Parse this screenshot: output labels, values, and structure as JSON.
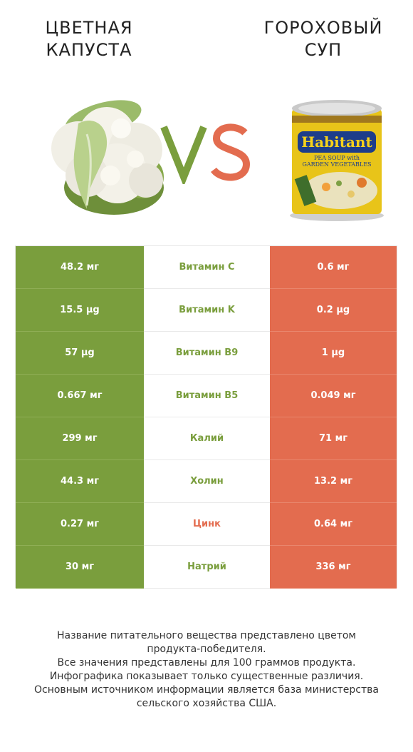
{
  "header": {
    "left_title": "ЦВЕТНАЯ КАПУСТА",
    "right_title": "ГОРОХОВЫЙ СУП",
    "vs": "VS"
  },
  "images": {
    "left": "cauliflower-image",
    "right": "pea-soup-can-image",
    "can_brand": "Habitant",
    "can_product": "PEA SOUP with GARDEN VEGETABLES"
  },
  "colors": {
    "left_winner": "#7a9e3d",
    "right_winner": "#e36c4f",
    "vs_v": "#7a9e3d",
    "vs_s": "#e36c4f"
  },
  "rows": [
    {
      "left": "48.2 мг",
      "nutrient": "Витамин C",
      "right": "0.6 мг",
      "winner": "left"
    },
    {
      "left": "15.5 µg",
      "nutrient": "Витамин K",
      "right": "0.2 µg",
      "winner": "left"
    },
    {
      "left": "57 µg",
      "nutrient": "Витамин B9",
      "right": "1 µg",
      "winner": "left"
    },
    {
      "left": "0.667 мг",
      "nutrient": "Витамин B5",
      "right": "0.049 мг",
      "winner": "left"
    },
    {
      "left": "299 мг",
      "nutrient": "Калий",
      "right": "71 мг",
      "winner": "left"
    },
    {
      "left": "44.3 мг",
      "nutrient": "Холин",
      "right": "13.2 мг",
      "winner": "left"
    },
    {
      "left": "0.27 мг",
      "nutrient": "Цинк",
      "right": "0.64 мг",
      "winner": "right"
    },
    {
      "left": "30 мг",
      "nutrient": "Натрий",
      "right": "336 мг",
      "winner": "left"
    }
  ],
  "footnote": [
    "Название питательного вещества представлено цветом",
    "продукта-победителя.",
    "Все значения представлены для 100 граммов продукта.",
    "Инфографика показывает только существенные различия.",
    "Основным источником информации является база министерства",
    "сельского хозяйства США."
  ]
}
